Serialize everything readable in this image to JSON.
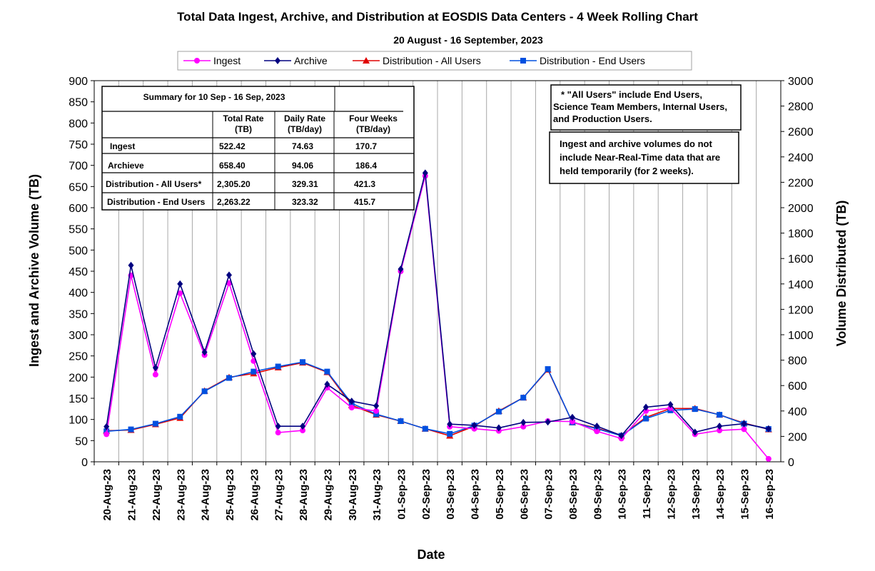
{
  "chart_data": {
    "type": "line",
    "title": "Total Data Ingest, Archive, and  Distribution at EOSDIS Data Centers - 4 Week Rolling Chart",
    "subtitle": "20 August   - 16 September,  2023",
    "xlabel": "Date",
    "ylabel_left": "Ingest and Archive Volume (TB)",
    "ylabel_right": "Volume Distributed (TB)",
    "ylim_left": [
      0,
      900
    ],
    "ylim_right": [
      0,
      3000
    ],
    "yticks_left": [
      0,
      50,
      100,
      150,
      200,
      250,
      300,
      350,
      400,
      450,
      500,
      550,
      600,
      650,
      700,
      750,
      800,
      850,
      900
    ],
    "yticks_right": [
      0,
      200,
      400,
      600,
      800,
      1000,
      1200,
      1400,
      1600,
      1800,
      2000,
      2200,
      2400,
      2600,
      2800,
      3000
    ],
    "grid": "vertical",
    "legend_position": "top",
    "categories": [
      "20-Aug-23",
      "21-Aug-23",
      "22-Aug-23",
      "23-Aug-23",
      "24-Aug-23",
      "25-Aug-23",
      "26-Aug-23",
      "27-Aug-23",
      "28-Aug-23",
      "29-Aug-23",
      "30-Aug-23",
      "31-Aug-23",
      "01-Sep-23",
      "02-Sep-23",
      "03-Sep-23",
      "04-Sep-23",
      "05-Sep-23",
      "06-Sep-23",
      "07-Sep-23",
      "08-Sep-23",
      "09-Sep-23",
      "10-Sep-23",
      "11-Sep-23",
      "12-Sep-23",
      "13-Sep-23",
      "14-Sep-23",
      "15-Sep-23",
      "16-Sep-23"
    ],
    "series": [
      {
        "name": "Ingest",
        "axis": "left",
        "color": "#ff00ff",
        "marker": "circle",
        "values": [
          65,
          440,
          206,
          398,
          252,
          422,
          238,
          69,
          74,
          175,
          128,
          120,
          450,
          675,
          83,
          78,
          73,
          83,
          96,
          95,
          72,
          55,
          120,
          127,
          65,
          74,
          77,
          7
        ]
      },
      {
        "name": "Archive",
        "axis": "left",
        "color": "#000080",
        "marker": "diamond",
        "values": [
          83,
          464,
          222,
          420,
          259,
          441,
          255,
          84,
          84,
          183,
          143,
          132,
          455,
          682,
          89,
          86,
          80,
          93,
          94,
          105,
          84,
          62,
          129,
          135,
          70,
          84,
          90,
          78
        ]
      },
      {
        "name": "Distribution - All Users",
        "axis": "right",
        "color": "#e00000",
        "marker": "triangle",
        "values": [
          245,
          250,
          295,
          345,
          558,
          665,
          695,
          742,
          780,
          705,
          445,
          370,
          320,
          260,
          205,
          280,
          400,
          505,
          725,
          310,
          265,
          205,
          350,
          420,
          420,
          370,
          305,
          255
        ]
      },
      {
        "name": "Distribution - End Users",
        "axis": "right",
        "color": "#0050e0",
        "marker": "square",
        "values": [
          240,
          255,
          300,
          355,
          555,
          660,
          710,
          750,
          785,
          710,
          460,
          375,
          320,
          260,
          220,
          285,
          395,
          505,
          730,
          310,
          260,
          205,
          340,
          405,
          415,
          370,
          300,
          258
        ]
      }
    ],
    "summary_table": {
      "title": "Summary  for  10  Sep  -  16  Sep,  2023",
      "columns": [
        "Total  Rate\n(TB)",
        "Daily Rate\n(TB/day)",
        "Four Weeks\n(TB/day)"
      ],
      "rows": [
        {
          "label": "Ingest",
          "values": [
            "522.42",
            "74.63",
            "170.7"
          ]
        },
        {
          "label": "Archieve",
          "values": [
            "658.40",
            "94.06",
            "186.4"
          ]
        },
        {
          "label": "Distribution - All Users*",
          "values": [
            "2,305.20",
            "329.31",
            "421.3"
          ]
        },
        {
          "label": "Distribution - End Users",
          "values": [
            "2,263.22",
            "323.32",
            "415.7"
          ]
        }
      ]
    },
    "note1": [
      "* \"All Users\" include End Users,",
      "Science Team Members,  Internal Users,",
      "and Production Users."
    ],
    "note2": [
      "Ingest and archive volumes do not",
      "include Near-Real-Time data that are",
      "held temporarily (for 2 weeks)."
    ]
  }
}
